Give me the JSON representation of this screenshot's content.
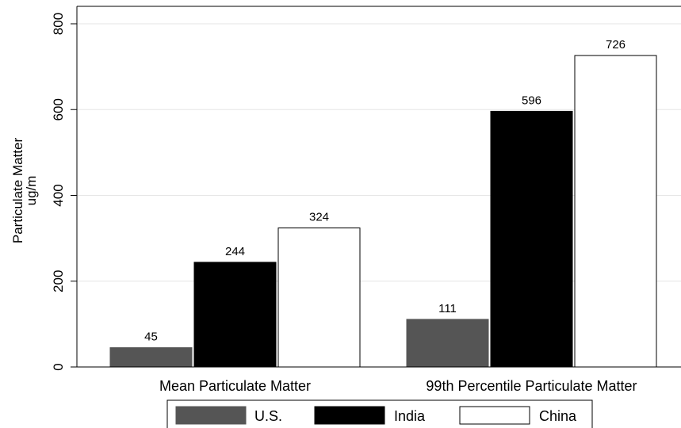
{
  "chart_data": {
    "type": "bar",
    "categories": [
      "Mean Particulate Matter",
      "99th Percentile Particulate Matter"
    ],
    "series": [
      {
        "name": "U.S.",
        "values": [
          45,
          111
        ],
        "color": "#555555"
      },
      {
        "name": "India",
        "values": [
          244,
          596
        ],
        "color": "#000000"
      },
      {
        "name": "China",
        "values": [
          324,
          726
        ],
        "color": "#ffffff"
      }
    ],
    "title": "",
    "xlabel": "",
    "ylabel_lines": [
      "Particulate Matter",
      "ug/m"
    ],
    "ylim": [
      0,
      800
    ],
    "yticks": [
      0,
      200,
      400,
      600,
      800
    ],
    "ytick_labels": [
      "0",
      "200",
      "400",
      "600",
      "800"
    ],
    "grid": true,
    "legend": "bottom",
    "data_labels": true,
    "bar_border_color": "#000000"
  }
}
